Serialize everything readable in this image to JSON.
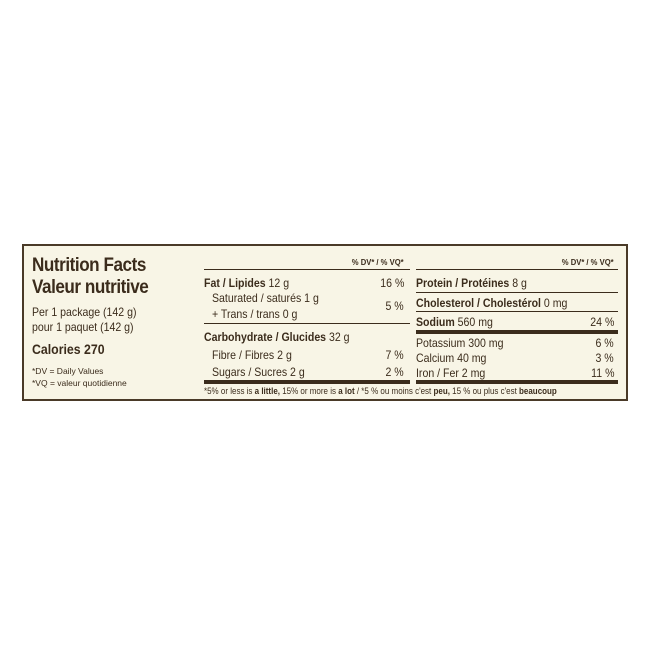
{
  "title_en": "Nutrition Facts",
  "title_fr": "Valeur nutritive",
  "serving_en": "Per 1 package (142 g)",
  "serving_fr": "pour 1 paquet (142 g)",
  "calories": "Calories 270",
  "dv_note": "*DV = Daily Values",
  "vq_note": "*VQ = valeur quotidienne",
  "dv_header": "% DV* / % VQ*",
  "left_rows": [
    {
      "bold": "Fat / Lipides",
      "amount": " 12 g",
      "dv": "16 %"
    },
    {
      "label": "Saturated / saturés 1 g"
    },
    {
      "label": "+ Trans / trans 0 g",
      "dv": "5 %"
    },
    {
      "bold": "Carbohydrate / Glucides",
      "amount": " 32 g"
    },
    {
      "label": "Fibre / Fibres 2 g",
      "dv": "7 %"
    },
    {
      "label": "Sugars / Sucres 2 g",
      "dv": "2 %"
    }
  ],
  "right_rows": [
    {
      "bold": "Protein / Protéines",
      "amount": " 8 g"
    },
    {
      "bold": "Cholesterol / Cholestérol",
      "amount": " 0 mg"
    },
    {
      "bold": "Sodium",
      "amount": " 560 mg",
      "dv": "24 %"
    },
    {
      "label": "Potassium 300 mg",
      "dv": "6 %"
    },
    {
      "label": "Calcium 40 mg",
      "dv": "3 %"
    },
    {
      "label": "Iron / Fer 2 mg",
      "dv": "11 %"
    }
  ],
  "footnote": {
    "p1": "*5% or less is ",
    "b1": "a little,",
    "p2": " 15% or more is ",
    "b2": "a lot",
    "p3": " / *5 % ou moins c'est ",
    "b3": "peu,",
    "p4": " 15 % ou plus c'est ",
    "b4": "beaucoup"
  }
}
